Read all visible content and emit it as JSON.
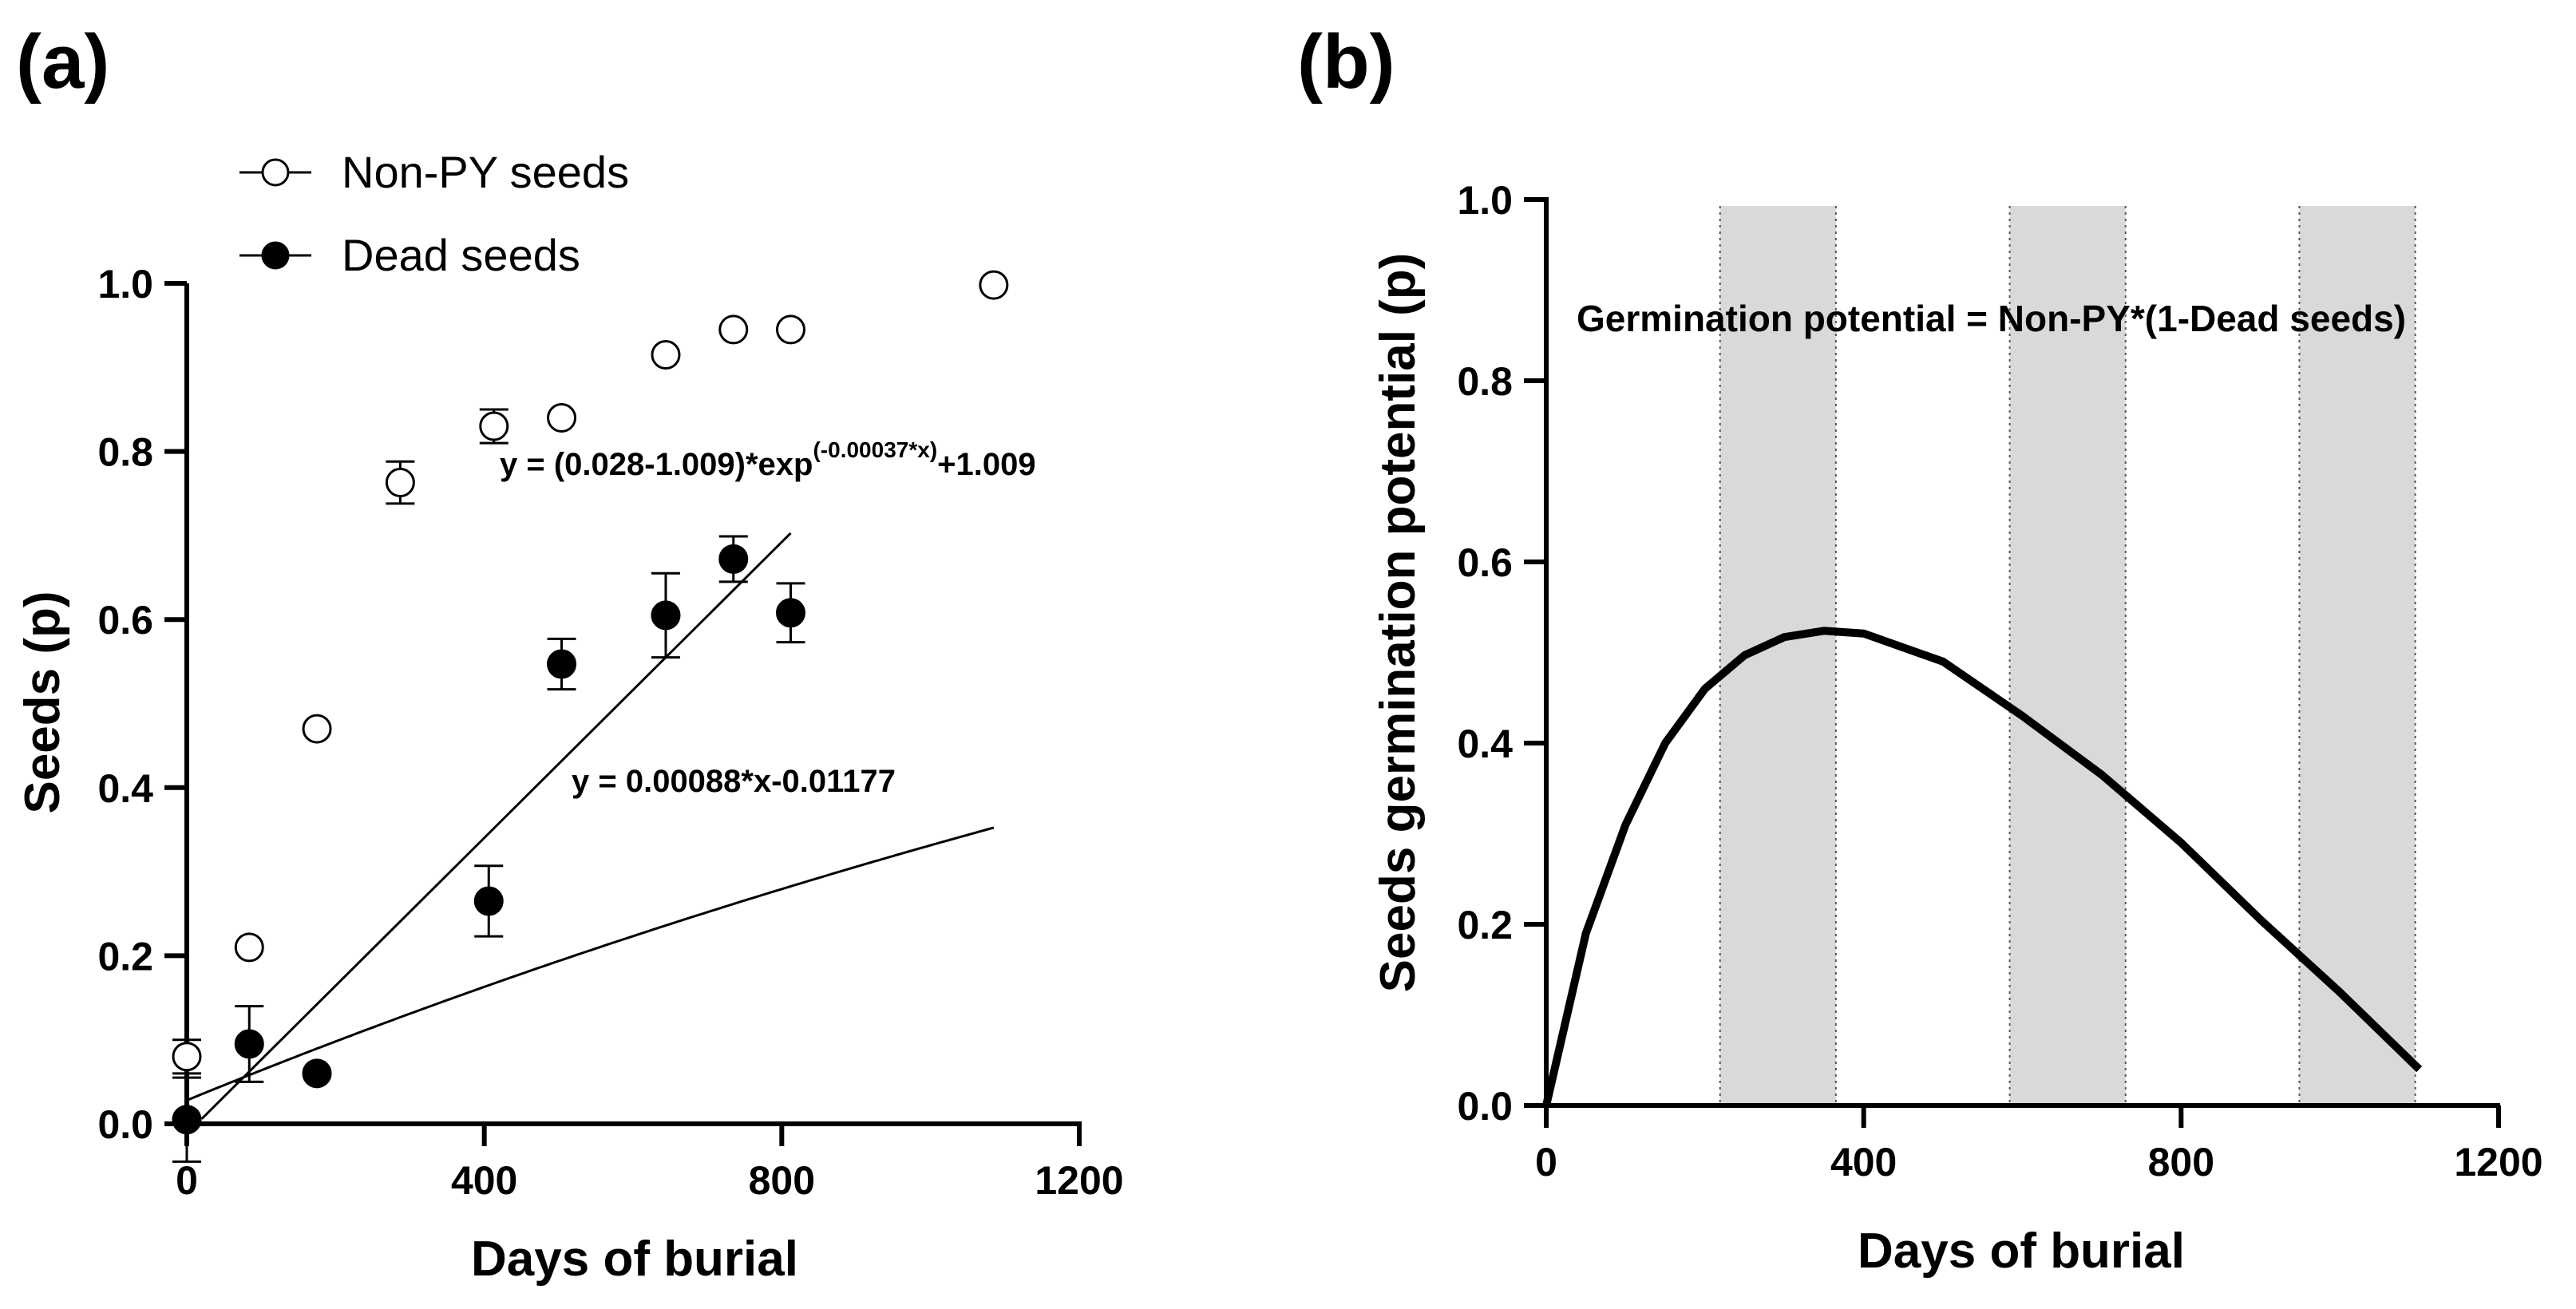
{
  "chart_data": [
    {
      "panel": "(a)",
      "type": "scatter",
      "xlabel": "Days of burial",
      "ylabel": "Seeds (p)",
      "xlim": [
        0,
        1200
      ],
      "ylim": [
        0,
        1.0
      ],
      "xticks": [
        "0",
        "400",
        "800",
        "1200"
      ],
      "yticks": [
        "0.0",
        "0.2",
        "0.4",
        "0.6",
        "0.8",
        "1.0"
      ],
      "legend": [
        "Non-PY seeds",
        "Dead seeds"
      ],
      "series": [
        {
          "name": "Non-PY seeds",
          "marker": "open-circle",
          "points": [
            {
              "x": 0,
              "y": 0.08,
              "err": 0.02
            },
            {
              "x": 84,
              "y": 0.21,
              "err": 0
            },
            {
              "x": 175,
              "y": 0.47,
              "err": 0
            },
            {
              "x": 287,
              "y": 0.763,
              "err": 0.025
            },
            {
              "x": 413,
              "y": 0.83,
              "err": 0.02
            },
            {
              "x": 504,
              "y": 0.84,
              "err": 0
            },
            {
              "x": 644,
              "y": 0.915,
              "err": 0
            },
            {
              "x": 735,
              "y": 0.945,
              "err": 0
            },
            {
              "x": 812,
              "y": 0.945,
              "err": 0
            },
            {
              "x": 1085,
              "y": 0.998,
              "err": 0
            }
          ],
          "fit": {
            "type": "exponential",
            "a": 0.028,
            "b": 1.009,
            "k": -0.00037,
            "x_range": [
              0,
              1085
            ]
          },
          "equation": {
            "main": "y = (0.028-1.009)*exp",
            "sup": "(-0.00037*x)",
            "tail": "+1.009"
          }
        },
        {
          "name": "Dead seeds",
          "marker": "filled-circle",
          "points": [
            {
              "x": 0,
              "y": 0.005,
              "err": 0.05
            },
            {
              "x": 84,
              "y": 0.095,
              "err": 0.045
            },
            {
              "x": 175,
              "y": 0.06,
              "err": 0
            },
            {
              "x": 406,
              "y": 0.265,
              "err": 0.042
            },
            {
              "x": 504,
              "y": 0.547,
              "err": 0.03
            },
            {
              "x": 644,
              "y": 0.605,
              "err": 0.05
            },
            {
              "x": 735,
              "y": 0.672,
              "err": 0.027
            },
            {
              "x": 812,
              "y": 0.608,
              "err": 0.035
            }
          ],
          "fit": {
            "type": "linear",
            "slope": 0.00088,
            "intercept": -0.01177,
            "x_range": [
              20,
              812
            ]
          },
          "equation": {
            "main": "y = 0.00088*x-0.01177"
          }
        }
      ]
    },
    {
      "panel": "(b)",
      "type": "line",
      "xlabel": "Days of burial",
      "ylabel": "Seeds germination potential (p)",
      "xlim": [
        0,
        1200
      ],
      "ylim": [
        0,
        1.0
      ],
      "xticks": [
        "0",
        "400",
        "800",
        "1200"
      ],
      "yticks": [
        "0.0",
        "0.2",
        "0.4",
        "0.6",
        "0.8",
        "1.0"
      ],
      "annotation": "Germination potential = Non-PY*(1-Dead seeds)",
      "shaded_periods": [
        [
          219,
          365
        ],
        [
          584,
          730
        ],
        [
          949,
          1095
        ]
      ],
      "series": [
        {
          "name": "Germination potential",
          "x": [
            0,
            50,
            100,
            150,
            200,
            250,
            300,
            350,
            400,
            500,
            600,
            700,
            800,
            900,
            1000,
            1100
          ],
          "y": [
            0.0,
            0.19,
            0.31,
            0.4,
            0.46,
            0.497,
            0.517,
            0.524,
            0.521,
            0.49,
            0.43,
            0.365,
            0.29,
            0.205,
            0.125,
            0.04
          ]
        }
      ]
    }
  ]
}
